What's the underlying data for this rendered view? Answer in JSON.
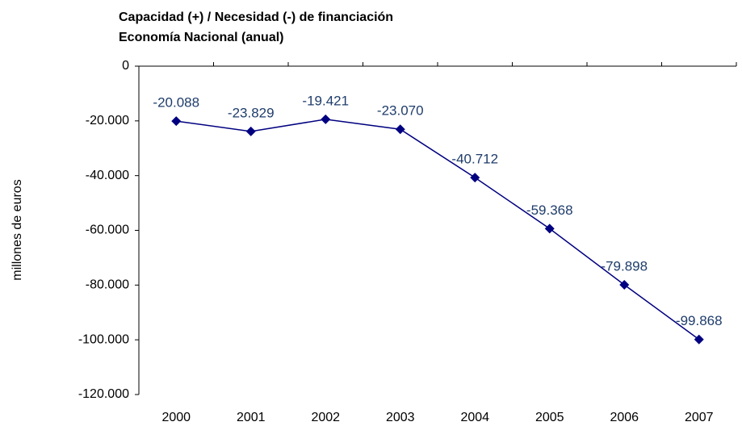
{
  "chart_data": {
    "type": "line",
    "title": "Capacidad (+) / Necesidad (-) de financiación",
    "subtitle": "Economía Nacional (anual)",
    "y_label": "millones de euros",
    "categories": [
      "2000",
      "2001",
      "2002",
      "2003",
      "2004",
      "2005",
      "2006",
      "2007"
    ],
    "series": [
      {
        "name": "Capacidad (+) / Necesidad (-) de financiación",
        "color": "#000080",
        "values": [
          -20088,
          -23829,
          -19421,
          -23070,
          -40712,
          -59368,
          -79898,
          -99868
        ],
        "value_labels": [
          "-20.088",
          "-23.829",
          "-19.421",
          "-23.070",
          "-40.712",
          "-59.368",
          "-79.898",
          "-99.868"
        ]
      }
    ],
    "ylim": [
      -120000,
      0
    ],
    "yticks": [
      {
        "value": -120000,
        "label": "-120.000"
      },
      {
        "value": -100000,
        "label": "-100.000"
      },
      {
        "value": -80000,
        "label": "-80.000"
      },
      {
        "value": -60000,
        "label": "-60.000"
      },
      {
        "value": -40000,
        "label": "-40.000"
      },
      {
        "value": -20000,
        "label": "-20.000"
      },
      0
    ],
    "grid": false
  }
}
